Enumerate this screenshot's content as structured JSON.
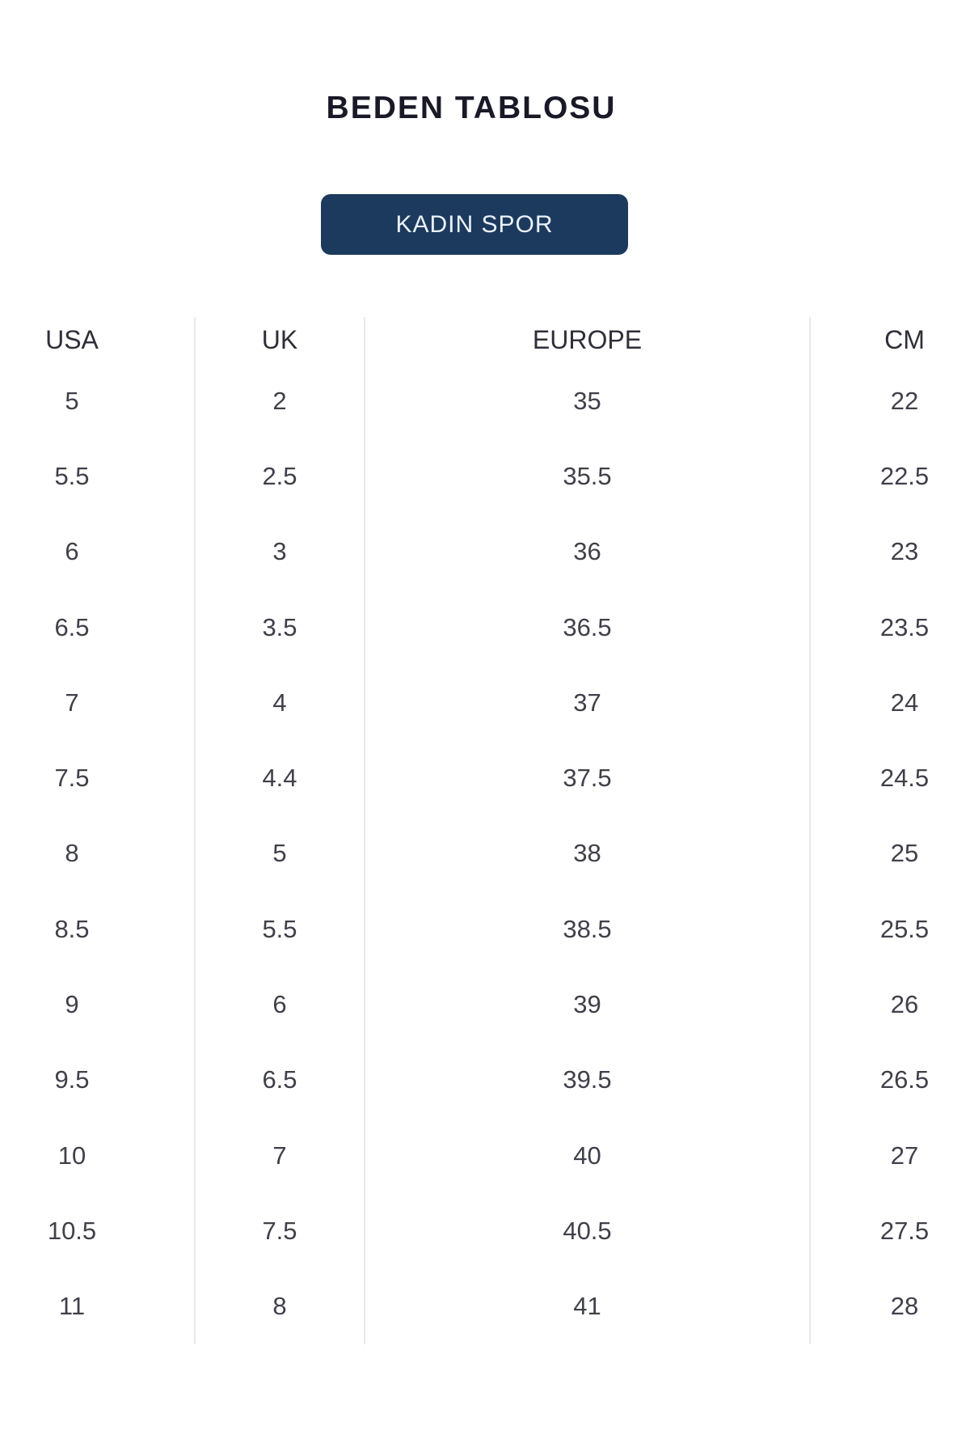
{
  "title": "BEDEN TABLOSU",
  "category_button": {
    "label": "KADIN SPOR"
  },
  "colors": {
    "background": "#ffffff",
    "title_color": "#191927",
    "button_bg": "#1c3a5e",
    "button_text": "#eaf1f9",
    "header_text": "#2f2f38",
    "cell_text": "#40404a",
    "divider": "#e9e9e9"
  },
  "table": {
    "columns": [
      "USA",
      "UK",
      "EUROPE",
      "CM"
    ],
    "rows": [
      [
        "5",
        "2",
        "35",
        "22"
      ],
      [
        "5.5",
        "2.5",
        "35.5",
        "22.5"
      ],
      [
        "6",
        "3",
        "36",
        "23"
      ],
      [
        "6.5",
        "3.5",
        "36.5",
        "23.5"
      ],
      [
        "7",
        "4",
        "37",
        "24"
      ],
      [
        "7.5",
        "4.4",
        "37.5",
        "24.5"
      ],
      [
        "8",
        "5",
        "38",
        "25"
      ],
      [
        "8.5",
        "5.5",
        "38.5",
        "25.5"
      ],
      [
        "9",
        "6",
        "39",
        "26"
      ],
      [
        "9.5",
        "6.5",
        "39.5",
        "26.5"
      ],
      [
        "10",
        "7",
        "40",
        "27"
      ],
      [
        "10.5",
        "7.5",
        "40.5",
        "27.5"
      ],
      [
        "11",
        "8",
        "41",
        "28"
      ]
    ]
  }
}
